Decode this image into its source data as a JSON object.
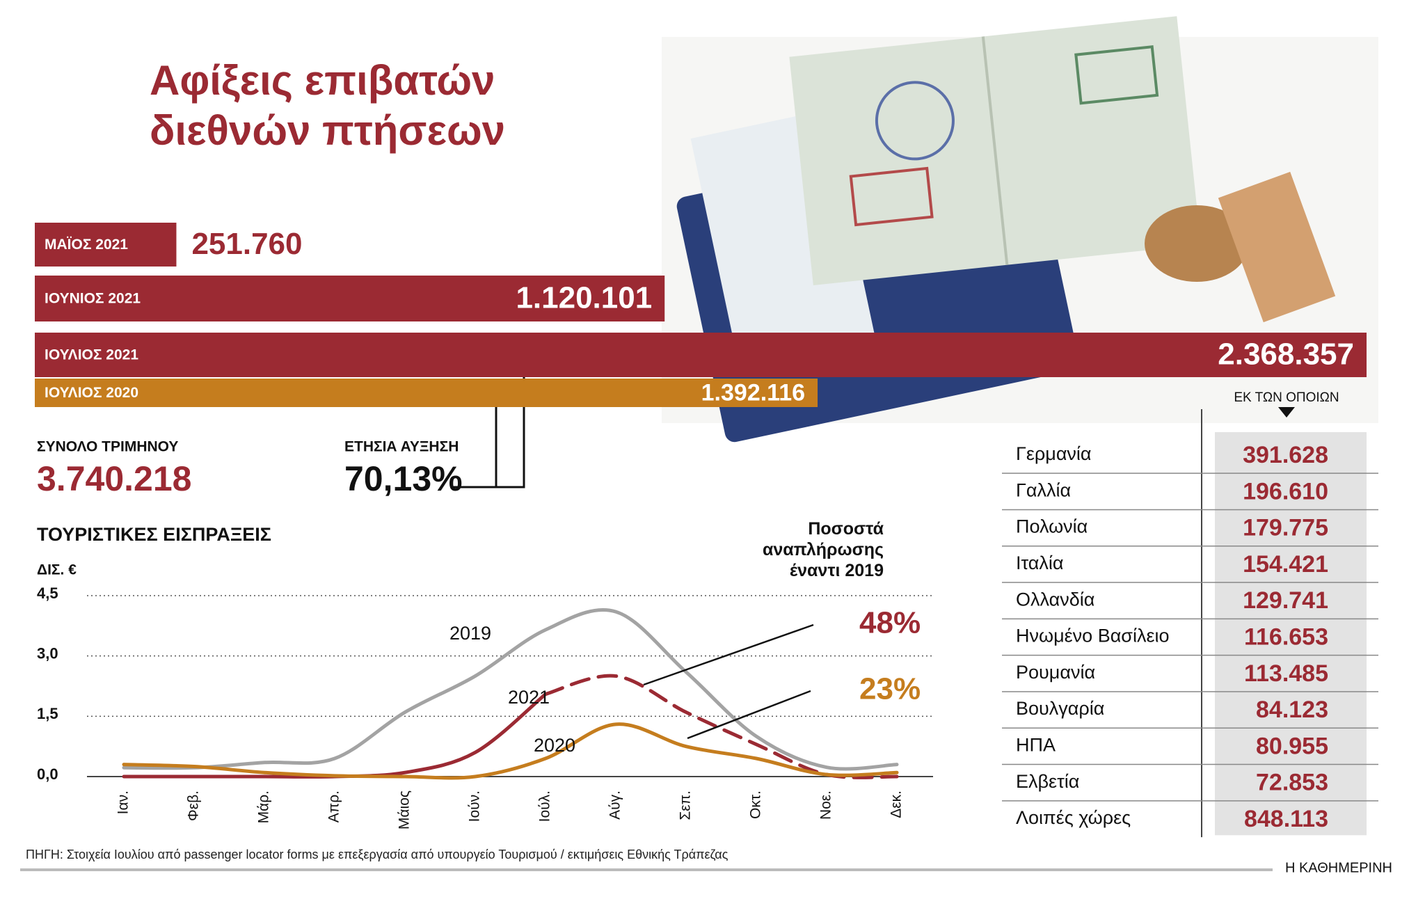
{
  "title": "Αφίξεις επιβατών διεθνών πτήσεων",
  "chart_data": [
    {
      "type": "bar",
      "orientation": "horizontal",
      "categories": [
        "ΜΑΪΟΣ 2021",
        "ΙΟΥΝΙΟΣ 2021",
        "ΙΟΥΛΙΟΣ 2021",
        "ΙΟΥΛΙΟΣ 2020"
      ],
      "values": [
        251760,
        1120101,
        2368357,
        1392116
      ],
      "value_labels": [
        "251.760",
        "1.120.101",
        "2.368.357",
        "1.392.116"
      ],
      "colors": [
        "#9b2a33",
        "#9b2a33",
        "#9b2a33",
        "#c57d1e"
      ]
    },
    {
      "type": "line",
      "title": "ΤΟΥΡΙΣΤΙΚΕΣ ΕΙΣΠΡΑΞΕΙΣ",
      "y_label": "ΔΙΣ. €",
      "categories": [
        "Ιαν.",
        "Φεβ.",
        "Μάρ.",
        "Απρ.",
        "Μάιος",
        "Ιούν.",
        "Ιούλ.",
        "Αύγ.",
        "Σεπ.",
        "Οκτ.",
        "Νοε.",
        "Δεκ."
      ],
      "ylim": [
        0,
        4.5
      ],
      "yticks": [
        {
          "value": 0,
          "label": "0,0"
        },
        {
          "value": 1.5,
          "label": "1,5"
        },
        {
          "value": 3,
          "label": "3,0"
        },
        {
          "value": 4.5,
          "label": "4,5"
        }
      ],
      "grid": true,
      "series": [
        {
          "name": "2019",
          "color": "#a3a3a3",
          "values": [
            0.22,
            0.22,
            0.35,
            0.45,
            1.6,
            2.5,
            3.65,
            4.1,
            2.6,
            1.0,
            0.23,
            0.3
          ]
        },
        {
          "name": "2021",
          "color": "#9b2a33",
          "dashed_from": 6,
          "values": [
            0.0,
            0.0,
            0.0,
            0.0,
            0.1,
            0.6,
            2.05,
            2.5,
            1.6,
            0.8,
            0.05,
            0.0
          ]
        },
        {
          "name": "2020",
          "color": "#c57d1e",
          "values": [
            0.3,
            0.25,
            0.1,
            0.02,
            0.0,
            0.0,
            0.45,
            1.3,
            0.75,
            0.45,
            0.05,
            0.1
          ]
        }
      ],
      "recovery": {
        "title": "Ποσοστά αναπλήρωσης έναντι 2019",
        "items": [
          {
            "label": "48%",
            "color": "#9b2a33"
          },
          {
            "label": "23%",
            "color": "#c57d1e"
          }
        ]
      }
    }
  ],
  "highlights": [
    {
      "label": "ΣΥΝΟΛΟ ΤΡΙΜΗΝΟΥ",
      "value": "3.740.218"
    },
    {
      "label": "ΕΤΗΣΙΑ ΑΥΞΗΣΗ",
      "value": "70,13%"
    }
  ],
  "table": {
    "header": "ΕΚ ΤΩΝ ΟΠΟΙΩΝ",
    "rows": [
      [
        "Γερμανία",
        "391.628"
      ],
      [
        "Γαλλία",
        "196.610"
      ],
      [
        "Πολωνία",
        "179.775"
      ],
      [
        "Ιταλία",
        "154.421"
      ],
      [
        "Ολλανδία",
        "129.741"
      ],
      [
        "Ηνωμένο Βασίλειο",
        "116.653"
      ],
      [
        "Ρουμανία",
        "113.485"
      ],
      [
        "Βουλγαρία",
        "84.123"
      ],
      [
        "ΗΠΑ",
        "80.955"
      ],
      [
        "Ελβετία",
        "72.853"
      ],
      [
        "Λοιπές χώρες",
        "848.113"
      ]
    ]
  },
  "source": "ΠΗΓΗ: Στοιχεία Ιουλίου από passenger locator forms με επεξεργασία από υπουργείο Τουρισμού / εκτιμήσεις Εθνικής Τράπεζας",
  "brand": "Η ΚΑΘΗΜΕΡΙΝΗ"
}
